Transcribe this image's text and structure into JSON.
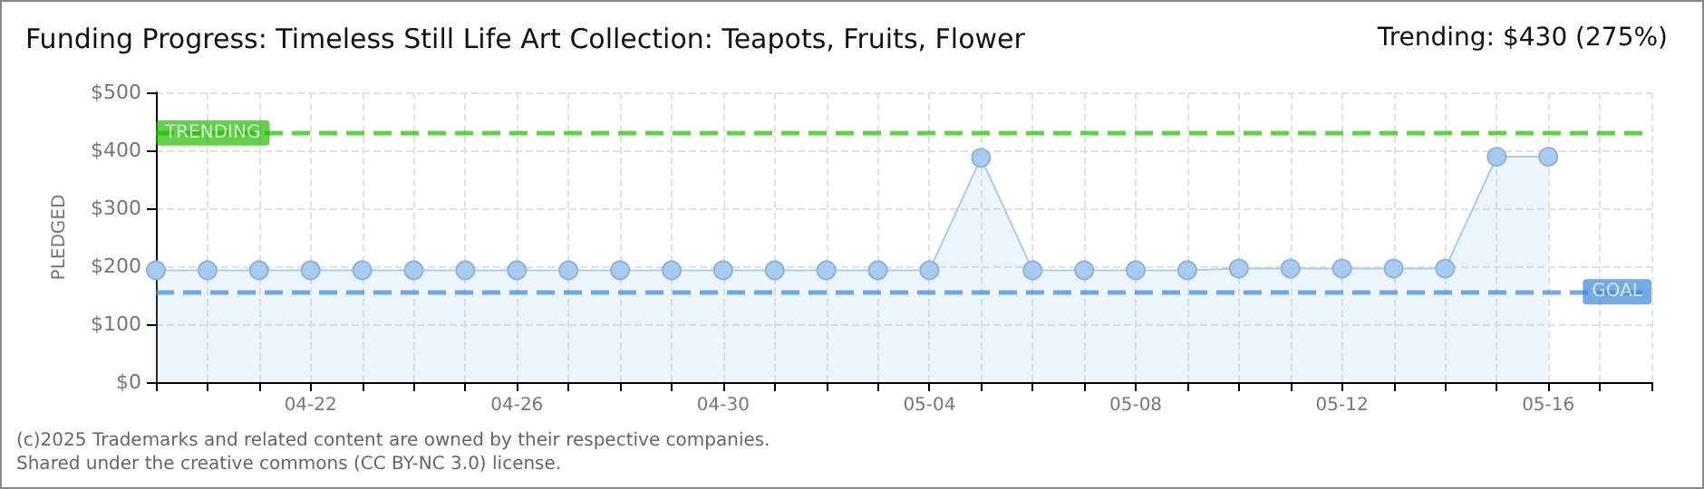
{
  "chart_data": {
    "type": "area",
    "title": "Funding Progress: Timeless Still Life Art Collection: Teapots, Fruits, Flower",
    "subtitle": "Trending: $430 (275%)",
    "ylabel": "PLEDGED",
    "annotations": [
      "(c)2025",
      "Trademarks and related content are owned by their respective companies.",
      "Shared under the creative commons (CC BY-NC 3.0) license."
    ],
    "x": [
      "--04-19",
      "--04-20",
      "--04-21",
      "--04-22",
      "--04-23",
      "--04-24",
      "--04-25",
      "--04-26",
      "--04-27",
      "--04-28",
      "--04-29",
      "--04-30",
      "--05-01",
      "--05-02",
      "--05-03",
      "--05-04",
      "--05-05",
      "--05-06",
      "--05-07",
      "--05-08",
      "--05-09",
      "--05-10",
      "--05-11",
      "--05-12",
      "--05-13",
      "--05-14",
      "--05-15",
      "--05-16"
    ],
    "series": [
      {
        "color": "#a9cbf0",
        "values": [
          193,
          193,
          193,
          193,
          193,
          193,
          193,
          193,
          193,
          193,
          193,
          193,
          193,
          193,
          193,
          193,
          387,
          193,
          193,
          193,
          193,
          196,
          196,
          196,
          196,
          196,
          389,
          389
        ]
      }
    ],
    "xlim": [
      "--04-19",
      "--05-18"
    ],
    "xticks": [
      {
        "value": "--04-19",
        "label": null
      },
      {
        "value": "--04-20",
        "label": null
      },
      {
        "value": "--04-21",
        "label": null
      },
      {
        "value": "--04-22",
        "label": "04-22"
      },
      {
        "value": "--04-23",
        "label": null
      },
      {
        "value": "--04-24",
        "label": null
      },
      {
        "value": "--04-25",
        "label": null
      },
      {
        "value": "--04-26",
        "label": "04-26"
      },
      {
        "value": "--04-27",
        "label": null
      },
      {
        "value": "--04-28",
        "label": null
      },
      {
        "value": "--04-29",
        "label": null
      },
      {
        "value": "--04-30",
        "label": "04-30"
      },
      {
        "value": "--05-01",
        "label": null
      },
      {
        "value": "--05-02",
        "label": null
      },
      {
        "value": "--05-03",
        "label": null
      },
      {
        "value": "--05-04",
        "label": "05-04"
      },
      {
        "value": "--05-05",
        "label": null
      },
      {
        "value": "--05-06",
        "label": null
      },
      {
        "value": "--05-07",
        "label": null
      },
      {
        "value": "--05-08",
        "label": "05-08"
      },
      {
        "value": "--05-09",
        "label": null
      },
      {
        "value": "--05-10",
        "label": null
      },
      {
        "value": "--05-11",
        "label": null
      },
      {
        "value": "--05-12",
        "label": "05-12"
      },
      {
        "value": "--05-13",
        "label": null
      },
      {
        "value": "--05-14",
        "label": null
      },
      {
        "value": "--05-15",
        "label": null
      },
      {
        "value": "--05-16",
        "label": "05-16"
      },
      {
        "value": "--05-17",
        "label": null
      },
      {
        "value": "--05-18",
        "label": null
      }
    ],
    "ylim": [
      0,
      500
    ],
    "yticks": [
      {
        "value": 0,
        "label": "$0"
      },
      {
        "value": 100,
        "label": "$100"
      },
      {
        "value": 200,
        "label": "$200"
      },
      {
        "value": 300,
        "label": "$300"
      },
      {
        "value": 400,
        "label": "$400"
      },
      {
        "value": 500,
        "label": "$500"
      }
    ],
    "ref_lines": [
      {
        "axis": "y",
        "value": 430,
        "label": "TRENDING",
        "color": "#22bb00",
        "line_style": "dashed"
      },
      {
        "axis": "y",
        "value": 156,
        "label": "GOAL",
        "color": "#3a86d6",
        "line_style": "dashed"
      }
    ],
    "grid": true,
    "marker": "circle",
    "line_style": "solid"
  }
}
